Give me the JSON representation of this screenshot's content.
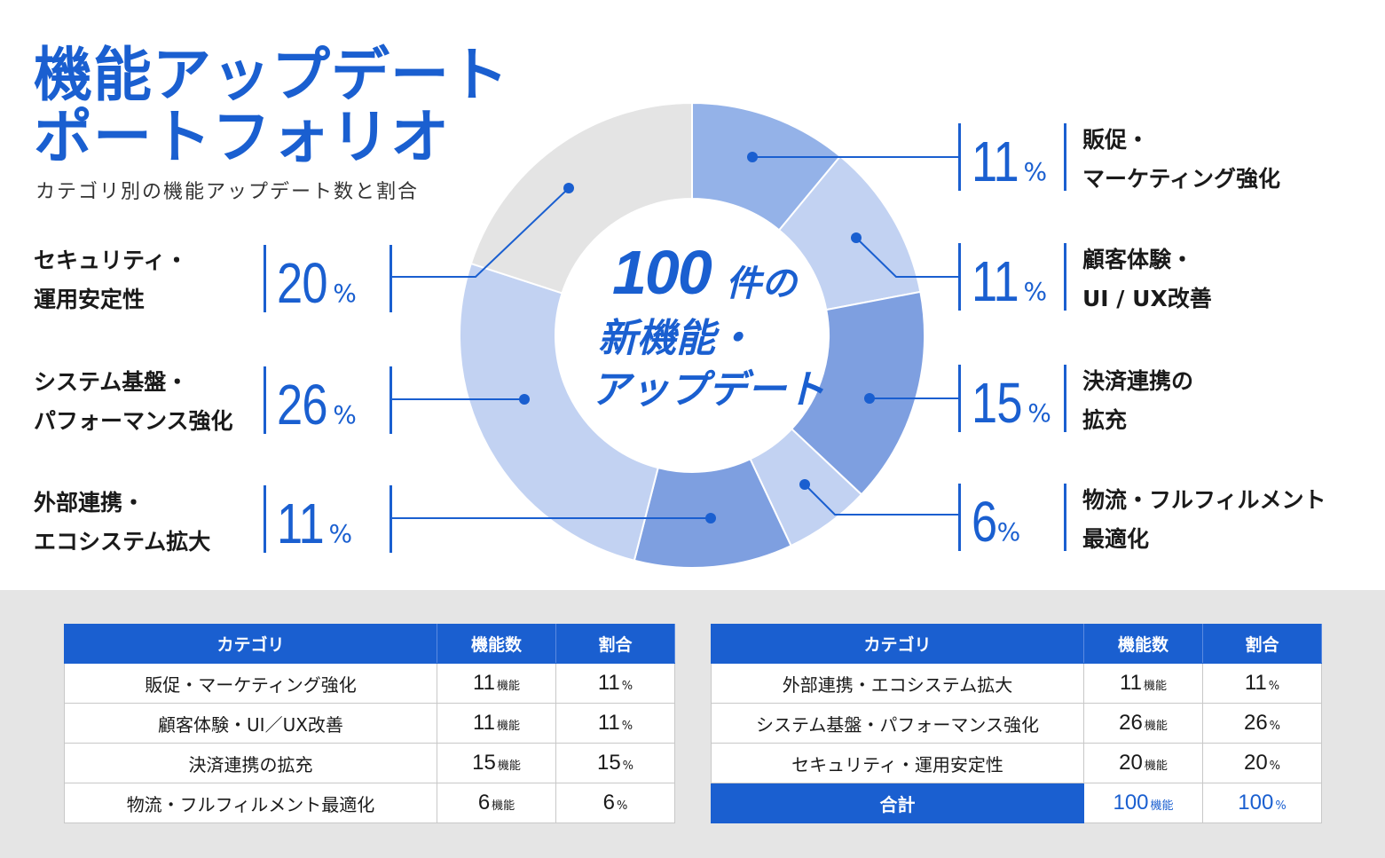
{
  "header": {
    "title_line1": "機能アップデート",
    "title_line2": "ポートフォリオ",
    "subtitle": "カテゴリ別の機能アップデート数と割合"
  },
  "center": {
    "count": "100",
    "unit": "件の",
    "line2": "新機能・",
    "line3": "アップデート"
  },
  "percent_symbol": "%",
  "labels": {
    "promo": {
      "pct": "11",
      "line1": "販促・",
      "line2": "マーケティング強化"
    },
    "cx": {
      "pct": "11",
      "line1": "顧客体験・",
      "line2": "UI / UX改善"
    },
    "payment": {
      "pct": "15",
      "line1": "決済連携の",
      "line2": "拡充"
    },
    "logistics": {
      "pct": "6",
      "line1": "物流・フルフィルメント",
      "line2": "最適化"
    },
    "external": {
      "pct": "11",
      "line1": "外部連携・",
      "line2": "エコシステム拡大"
    },
    "system": {
      "pct": "26",
      "line1": "システム基盤・",
      "line2": "パフォーマンス強化"
    },
    "security": {
      "pct": "20",
      "line1": "セキュリティ・",
      "line2": "運用安定性"
    }
  },
  "chart_data": {
    "type": "pie",
    "variant": "donut",
    "total": 100,
    "slices": [
      {
        "label": "販促・マーケティング強化",
        "value": 11,
        "color": "#94b2e8"
      },
      {
        "label": "顧客体験・UI／UX改善",
        "value": 11,
        "color": "#c2d2f2"
      },
      {
        "label": "決済連携の拡充",
        "value": 15,
        "color": "#7e9fe0"
      },
      {
        "label": "物流・フルフィルメント最適化",
        "value": 6,
        "color": "#c2d2f2"
      },
      {
        "label": "外部連携・エコシステム拡大",
        "value": 11,
        "color": "#7e9fe0"
      },
      {
        "label": "システム基盤・パフォーマンス強化",
        "value": 26,
        "color": "#c2d2f2"
      },
      {
        "label": "セキュリティ・運用安定性",
        "value": 20,
        "color": "#e4e4e4"
      }
    ]
  },
  "tables": {
    "headers": {
      "category": "カテゴリ",
      "count": "機能数",
      "ratio": "割合"
    },
    "count_unit": "機能",
    "ratio_unit": "%",
    "left_rows": [
      {
        "category": "販促・マーケティング強化",
        "count": "11",
        "ratio": "11"
      },
      {
        "category": "顧客体験・UI／UX改善",
        "count": "11",
        "ratio": "11"
      },
      {
        "category": "決済連携の拡充",
        "count": "15",
        "ratio": "15"
      },
      {
        "category": "物流・フルフィルメント最適化",
        "count": "6",
        "ratio": "6"
      }
    ],
    "right_rows": [
      {
        "category": "外部連携・エコシステム拡大",
        "count": "11",
        "ratio": "11"
      },
      {
        "category": "システム基盤・パフォーマンス強化",
        "count": "26",
        "ratio": "26"
      },
      {
        "category": "セキュリティ・運用安定性",
        "count": "20",
        "ratio": "20"
      }
    ],
    "total": {
      "category": "合計",
      "count": "100",
      "ratio": "100"
    }
  },
  "colors": {
    "accent": "#1a5fd0",
    "band": "#e5e5e5"
  }
}
